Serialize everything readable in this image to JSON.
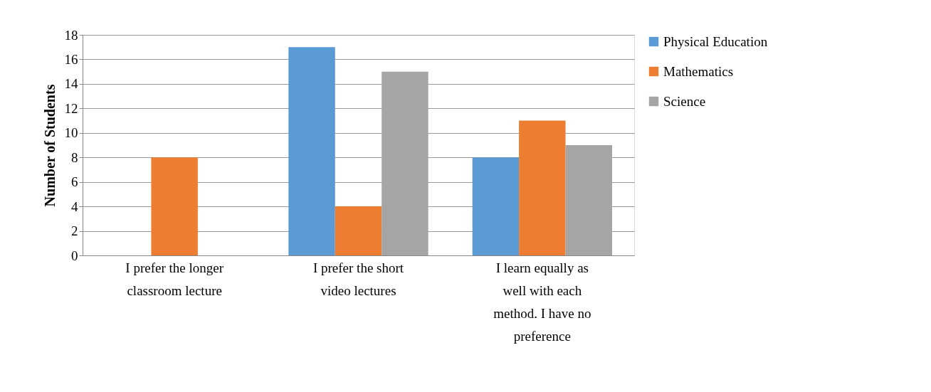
{
  "chart_data": {
    "type": "bar",
    "ylabel": "Number of Students",
    "categories": [
      "I prefer the longer classroom lecture",
      "I prefer the short video lectures",
      "I learn equally as well with each method. I have no preference"
    ],
    "series": [
      {
        "name": "Physical Education",
        "color": "#5b9bd5",
        "values": [
          0,
          17,
          8
        ]
      },
      {
        "name": "Mathematics",
        "color": "#ed7d31",
        "values": [
          8,
          4,
          11
        ]
      },
      {
        "name": "Science",
        "color": "#a5a5a5",
        "values": [
          0,
          15,
          9
        ]
      }
    ],
    "ylim": [
      0,
      18
    ],
    "yticks": [
      0,
      2,
      4,
      6,
      8,
      10,
      12,
      14,
      16,
      18
    ],
    "grid": "y",
    "legend": "right"
  }
}
